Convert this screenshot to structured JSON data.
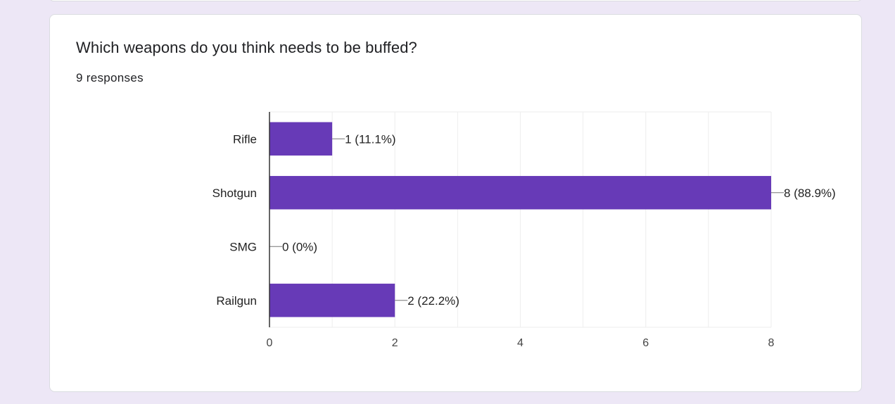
{
  "question": {
    "title": "Which weapons do you think needs to be buffed?",
    "responses": "9 responses"
  },
  "colors": {
    "bar": "#673ab7",
    "background": "#ede7f6",
    "grid": "#eeeeee",
    "axis": "#333333",
    "text": "#222222"
  },
  "chart_data": {
    "type": "bar",
    "orientation": "horizontal",
    "title": "",
    "xlabel": "",
    "ylabel": "",
    "categories": [
      "Rifle",
      "Shotgun",
      "SMG",
      "Railgun"
    ],
    "values": [
      1,
      8,
      0,
      2
    ],
    "data_labels": [
      "1 (11.1%)",
      "8 (88.9%)",
      "0 (0%)",
      "2 (22.2%)"
    ],
    "xlim": [
      0,
      8
    ],
    "xticks": [
      0,
      2,
      4,
      6,
      8
    ],
    "grid": true
  }
}
